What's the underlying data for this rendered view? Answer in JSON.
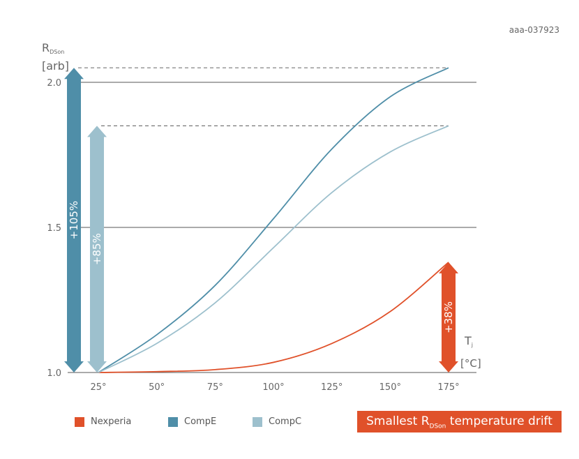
{
  "figure_code": "aaa-037923",
  "banner": {
    "prefix": "Smallest R",
    "sub": "DSon",
    "suffix": " temperature drift"
  },
  "colors": {
    "Nexperia": "#e0512a",
    "CompE": "#4f8ea8",
    "CompC": "#9dc0cd",
    "grid": "#777777"
  },
  "chart_data": {
    "type": "line",
    "ylabel": {
      "main": "R",
      "sub": "DSon",
      "unit": "[arb]"
    },
    "xlabel": {
      "main": "T",
      "sub": "j",
      "unit": "[°C]"
    },
    "x": [
      25,
      50,
      75,
      100,
      125,
      150,
      175
    ],
    "x_tick_labels": [
      "25°",
      "50°",
      "75°",
      "100°",
      "125°",
      "150°",
      "175°"
    ],
    "y_ticks": [
      1.0,
      1.5,
      2.0
    ],
    "y_tick_labels": [
      "1.0",
      "1.5",
      "2.0"
    ],
    "xlim": [
      25,
      175
    ],
    "ylim": [
      1.0,
      2.05
    ],
    "grid": "horizontal",
    "legend_placement": "bottom",
    "series": [
      {
        "name": "Nexperia",
        "values": [
          1.0,
          1.003,
          1.01,
          1.035,
          1.1,
          1.21,
          1.38
        ]
      },
      {
        "name": "CompE",
        "values": [
          1.0,
          1.13,
          1.3,
          1.53,
          1.77,
          1.95,
          2.05
        ]
      },
      {
        "name": "CompC",
        "values": [
          1.0,
          1.1,
          1.24,
          1.43,
          1.62,
          1.76,
          1.85
        ]
      }
    ],
    "annotations": [
      {
        "series": "CompE",
        "text": "+105%",
        "from": 1.0,
        "to": 2.05
      },
      {
        "series": "CompC",
        "text": "+85%",
        "from": 1.0,
        "to": 1.85
      },
      {
        "series": "Nexperia",
        "text": "+38%",
        "from": 1.0,
        "to": 1.38
      }
    ]
  }
}
